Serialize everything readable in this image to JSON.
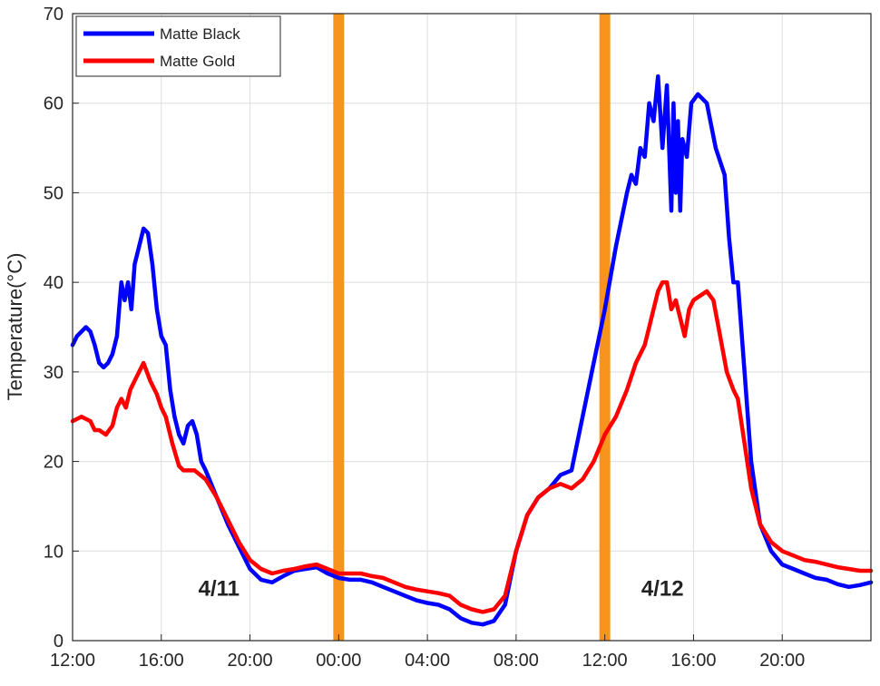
{
  "chart_data": {
    "type": "line",
    "xlabel": "",
    "ylabel": "Temperature(°C)",
    "ylim": [
      0,
      70
    ],
    "yticks": [
      0,
      10,
      20,
      30,
      40,
      50,
      60,
      70
    ],
    "xlim": [
      12,
      48
    ],
    "xticks": [
      {
        "hour": 12,
        "label": "12:00"
      },
      {
        "hour": 16,
        "label": "16:00"
      },
      {
        "hour": 20,
        "label": "20:00"
      },
      {
        "hour": 24,
        "label": "00:00"
      },
      {
        "hour": 28,
        "label": "04:00"
      },
      {
        "hour": 32,
        "label": "08:00"
      },
      {
        "hour": 36,
        "label": "12:00"
      },
      {
        "hour": 40,
        "label": "16:00"
      },
      {
        "hour": 44,
        "label": "20:00"
      }
    ],
    "grid": true,
    "legend_position": "top-left",
    "series": [
      {
        "name": "Matte Black",
        "color": "#0000ff",
        "points": [
          [
            12.0,
            33
          ],
          [
            12.2,
            34
          ],
          [
            12.4,
            34.5
          ],
          [
            12.6,
            35
          ],
          [
            12.8,
            34.5
          ],
          [
            13.0,
            33
          ],
          [
            13.2,
            31
          ],
          [
            13.4,
            30.5
          ],
          [
            13.6,
            31
          ],
          [
            13.8,
            32
          ],
          [
            14.0,
            34
          ],
          [
            14.1,
            37
          ],
          [
            14.2,
            40
          ],
          [
            14.35,
            38
          ],
          [
            14.5,
            40
          ],
          [
            14.65,
            37
          ],
          [
            14.8,
            42
          ],
          [
            15.0,
            44
          ],
          [
            15.2,
            46
          ],
          [
            15.4,
            45.5
          ],
          [
            15.6,
            42
          ],
          [
            15.8,
            37
          ],
          [
            16.0,
            34
          ],
          [
            16.2,
            33
          ],
          [
            16.4,
            28
          ],
          [
            16.6,
            25
          ],
          [
            16.8,
            23
          ],
          [
            17.0,
            22
          ],
          [
            17.2,
            24
          ],
          [
            17.4,
            24.5
          ],
          [
            17.6,
            23
          ],
          [
            17.8,
            20
          ],
          [
            18.0,
            19
          ],
          [
            18.5,
            16
          ],
          [
            19.0,
            13
          ],
          [
            19.5,
            10.5
          ],
          [
            20.0,
            8
          ],
          [
            20.5,
            6.8
          ],
          [
            21.0,
            6.5
          ],
          [
            21.5,
            7.2
          ],
          [
            22.0,
            7.8
          ],
          [
            22.5,
            8
          ],
          [
            23.0,
            8.2
          ],
          [
            23.5,
            7.5
          ],
          [
            24.0,
            7
          ],
          [
            24.5,
            6.8
          ],
          [
            25.0,
            6.8
          ],
          [
            25.5,
            6.5
          ],
          [
            26.0,
            6
          ],
          [
            26.5,
            5.5
          ],
          [
            27.0,
            5
          ],
          [
            27.5,
            4.5
          ],
          [
            28.0,
            4.2
          ],
          [
            28.5,
            4
          ],
          [
            29.0,
            3.5
          ],
          [
            29.5,
            2.5
          ],
          [
            30.0,
            2
          ],
          [
            30.5,
            1.8
          ],
          [
            31.0,
            2.2
          ],
          [
            31.5,
            4
          ],
          [
            32.0,
            10
          ],
          [
            32.5,
            14
          ],
          [
            33.0,
            16
          ],
          [
            33.5,
            17
          ],
          [
            34.0,
            18.5
          ],
          [
            34.5,
            19
          ],
          [
            35.0,
            25
          ],
          [
            35.5,
            31
          ],
          [
            36.0,
            37
          ],
          [
            36.5,
            44
          ],
          [
            37.0,
            50
          ],
          [
            37.2,
            52
          ],
          [
            37.4,
            51
          ],
          [
            37.6,
            55
          ],
          [
            37.8,
            54
          ],
          [
            38.0,
            60
          ],
          [
            38.2,
            58
          ],
          [
            38.4,
            63
          ],
          [
            38.6,
            55
          ],
          [
            38.8,
            62
          ],
          [
            39.0,
            48
          ],
          [
            39.1,
            60
          ],
          [
            39.2,
            50
          ],
          [
            39.3,
            58
          ],
          [
            39.4,
            48
          ],
          [
            39.5,
            56
          ],
          [
            39.7,
            54
          ],
          [
            39.9,
            60
          ],
          [
            40.2,
            61
          ],
          [
            40.6,
            60
          ],
          [
            41.0,
            55
          ],
          [
            41.4,
            52
          ],
          [
            41.6,
            45
          ],
          [
            41.8,
            40
          ],
          [
            42.0,
            40
          ],
          [
            42.3,
            30
          ],
          [
            42.6,
            20
          ],
          [
            43.0,
            13
          ],
          [
            43.5,
            10
          ],
          [
            44.0,
            8.5
          ],
          [
            44.5,
            8
          ],
          [
            45.0,
            7.5
          ],
          [
            45.5,
            7
          ],
          [
            46.0,
            6.8
          ],
          [
            46.5,
            6.3
          ],
          [
            47.0,
            6
          ],
          [
            47.5,
            6.2
          ],
          [
            48.0,
            6.5
          ]
        ]
      },
      {
        "name": "Matte Gold",
        "color": "#ff0000",
        "points": [
          [
            12.0,
            24.5
          ],
          [
            12.4,
            25
          ],
          [
            12.8,
            24.5
          ],
          [
            13.0,
            23.5
          ],
          [
            13.2,
            23.5
          ],
          [
            13.5,
            23
          ],
          [
            13.8,
            24
          ],
          [
            14.0,
            26
          ],
          [
            14.2,
            27
          ],
          [
            14.4,
            26
          ],
          [
            14.6,
            28
          ],
          [
            14.8,
            29
          ],
          [
            15.0,
            30
          ],
          [
            15.2,
            31
          ],
          [
            15.5,
            29
          ],
          [
            15.8,
            27.5
          ],
          [
            16.0,
            26
          ],
          [
            16.2,
            25
          ],
          [
            16.5,
            22
          ],
          [
            16.8,
            19.5
          ],
          [
            17.0,
            19
          ],
          [
            17.5,
            19
          ],
          [
            18.0,
            18
          ],
          [
            18.5,
            16
          ],
          [
            19.0,
            13.5
          ],
          [
            19.5,
            11
          ],
          [
            20.0,
            9
          ],
          [
            20.5,
            8
          ],
          [
            21.0,
            7.5
          ],
          [
            21.5,
            7.8
          ],
          [
            22.0,
            8
          ],
          [
            22.5,
            8.3
          ],
          [
            23.0,
            8.5
          ],
          [
            23.5,
            8
          ],
          [
            24.0,
            7.5
          ],
          [
            24.5,
            7.5
          ],
          [
            25.0,
            7.5
          ],
          [
            25.5,
            7.2
          ],
          [
            26.0,
            7
          ],
          [
            26.5,
            6.5
          ],
          [
            27.0,
            6
          ],
          [
            27.5,
            5.7
          ],
          [
            28.0,
            5.5
          ],
          [
            28.5,
            5.3
          ],
          [
            29.0,
            5
          ],
          [
            29.5,
            4
          ],
          [
            30.0,
            3.5
          ],
          [
            30.5,
            3.2
          ],
          [
            31.0,
            3.5
          ],
          [
            31.5,
            5
          ],
          [
            32.0,
            10
          ],
          [
            32.5,
            14
          ],
          [
            33.0,
            16
          ],
          [
            33.5,
            17
          ],
          [
            34.0,
            17.5
          ],
          [
            34.5,
            17
          ],
          [
            35.0,
            18
          ],
          [
            35.5,
            20
          ],
          [
            36.0,
            23
          ],
          [
            36.5,
            25
          ],
          [
            37.0,
            28
          ],
          [
            37.4,
            31
          ],
          [
            37.8,
            33
          ],
          [
            38.0,
            35
          ],
          [
            38.2,
            37
          ],
          [
            38.4,
            39
          ],
          [
            38.6,
            40
          ],
          [
            38.8,
            40
          ],
          [
            39.0,
            37
          ],
          [
            39.2,
            38
          ],
          [
            39.4,
            36
          ],
          [
            39.6,
            34
          ],
          [
            39.8,
            37
          ],
          [
            40.0,
            38
          ],
          [
            40.3,
            38.5
          ],
          [
            40.6,
            39
          ],
          [
            40.9,
            38
          ],
          [
            41.2,
            34
          ],
          [
            41.5,
            30
          ],
          [
            41.8,
            28
          ],
          [
            42.0,
            27
          ],
          [
            42.3,
            22
          ],
          [
            42.6,
            17
          ],
          [
            43.0,
            13
          ],
          [
            43.5,
            11
          ],
          [
            44.0,
            10
          ],
          [
            44.5,
            9.5
          ],
          [
            45.0,
            9
          ],
          [
            45.5,
            8.8
          ],
          [
            46.0,
            8.5
          ],
          [
            46.5,
            8.2
          ],
          [
            47.0,
            8
          ],
          [
            47.5,
            7.8
          ],
          [
            48.0,
            7.8
          ]
        ]
      }
    ],
    "markers": [
      {
        "hour": 24,
        "color": "#f7941d"
      },
      {
        "hour": 36,
        "color": "#f7941d"
      }
    ],
    "annotations": [
      {
        "text": "4/11",
        "hour": 18.6,
        "value": 5
      },
      {
        "text": "4/12",
        "hour": 38.6,
        "value": 5
      }
    ]
  }
}
